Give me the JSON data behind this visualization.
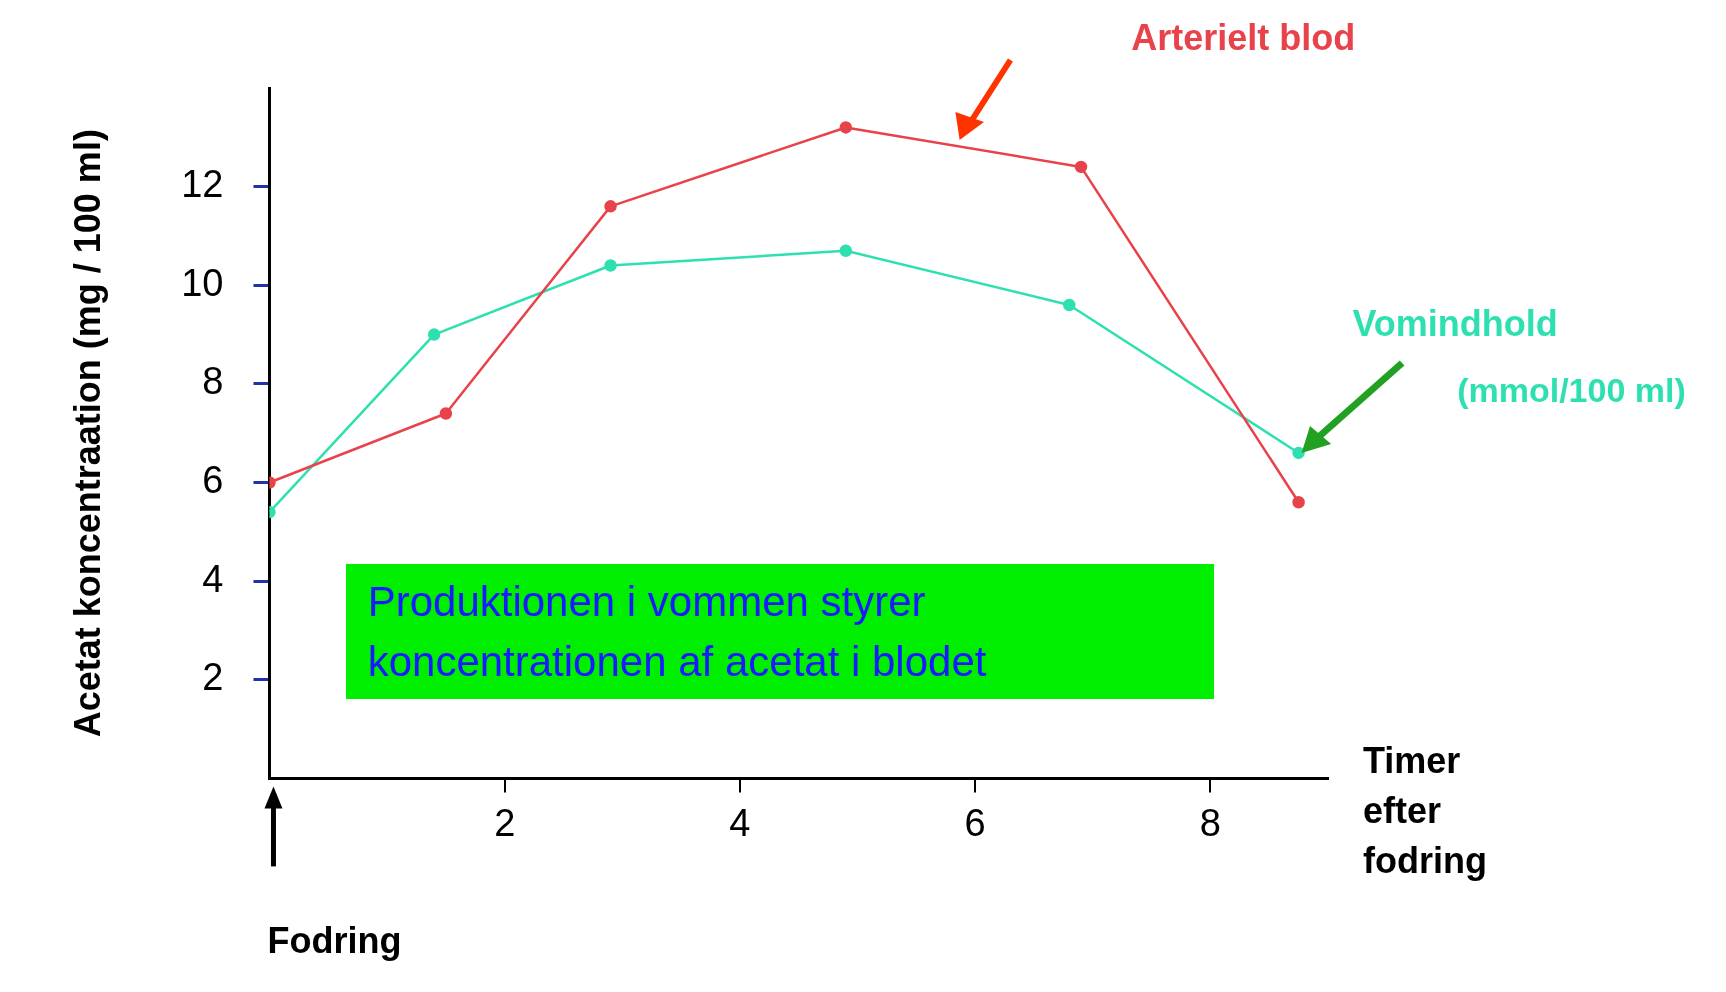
{
  "chart_data": {
    "type": "line",
    "xlabel": "Timer efter fodring",
    "ylabel": "Acetat koncentraation (mg / 100 ml)",
    "xlim": [
      0,
      9
    ],
    "ylim": [
      0,
      14
    ],
    "xticks": [
      2,
      4,
      6,
      8
    ],
    "yticks": [
      2,
      4,
      6,
      8,
      10,
      12
    ],
    "marker": "circle",
    "series": [
      {
        "name": "Arterielt blod",
        "color": "#e8434a",
        "x": [
          0,
          1.5,
          2.9,
          4.9,
          6.9,
          8.75
        ],
        "values": [
          6.0,
          7.4,
          11.6,
          13.2,
          12.4,
          5.6
        ]
      },
      {
        "name": "Vomindhold",
        "color": "#2ee0b0",
        "x": [
          0,
          1.4,
          2.9,
          4.9,
          6.8,
          8.75
        ],
        "values": [
          5.4,
          9.0,
          10.4,
          10.7,
          9.6,
          6.6
        ]
      }
    ],
    "annotations": [
      "Produktionen i vommen styrer koncentrationen af acetat i blodet",
      "(mmol/100 ml)",
      "Fodring"
    ]
  }
}
